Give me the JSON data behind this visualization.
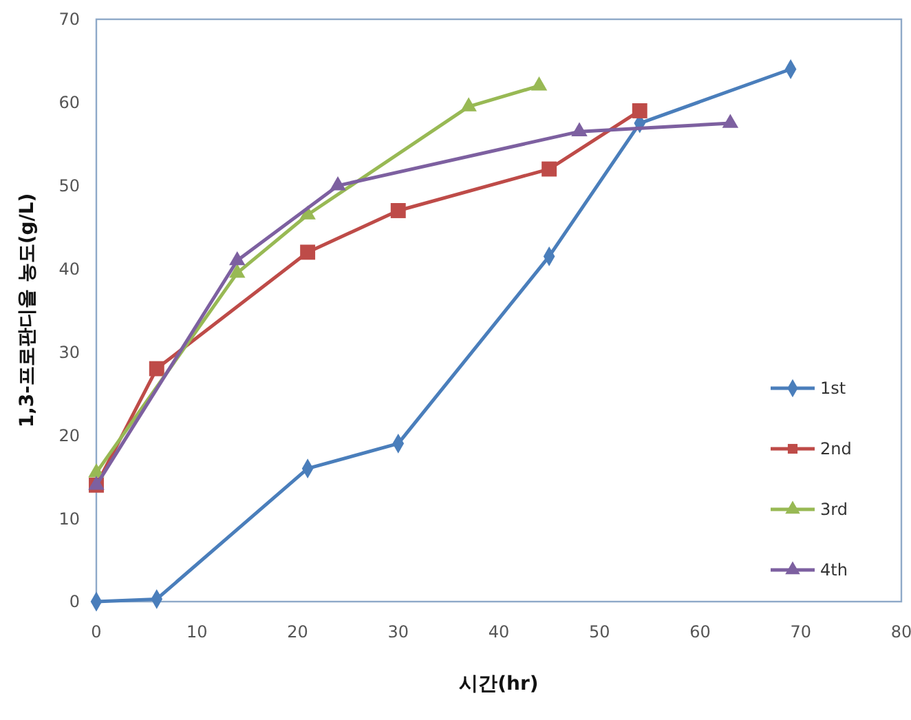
{
  "chart_data": {
    "type": "line",
    "xlabel": "시간(hr)",
    "ylabel": "1,3-프로판디올 농도(g/L)",
    "xlim": [
      0,
      80
    ],
    "xticks": [
      0,
      10,
      20,
      30,
      40,
      50,
      60,
      70,
      80
    ],
    "ylim": [
      0,
      70
    ],
    "yticks": [
      0,
      10,
      20,
      30,
      40,
      50,
      60,
      70
    ],
    "grid": false,
    "legend": "bottom right",
    "line_style": "solid",
    "series": [
      {
        "name": "1st",
        "color": "#4a7ebb",
        "marker": "diamond",
        "x": [
          0,
          6,
          21,
          30,
          45,
          54,
          69
        ],
        "values": [
          0,
          0.3,
          16,
          19,
          41.5,
          57.5,
          64
        ]
      },
      {
        "name": "2nd",
        "color": "#be4b48",
        "marker": "square",
        "x": [
          0,
          6,
          21,
          30,
          45,
          54
        ],
        "values": [
          14,
          28,
          42,
          47,
          52,
          59
        ]
      },
      {
        "name": "3rd",
        "color": "#98b954",
        "marker": "triangle",
        "x": [
          0,
          14,
          21,
          37,
          44
        ],
        "values": [
          15.5,
          39.5,
          46.5,
          59.5,
          62
        ]
      },
      {
        "name": "4th",
        "color": "#7d60a0",
        "marker": "triangle",
        "x": [
          0,
          14,
          24,
          48,
          63
        ],
        "values": [
          14,
          41,
          50,
          56.5,
          57.5
        ]
      }
    ]
  }
}
